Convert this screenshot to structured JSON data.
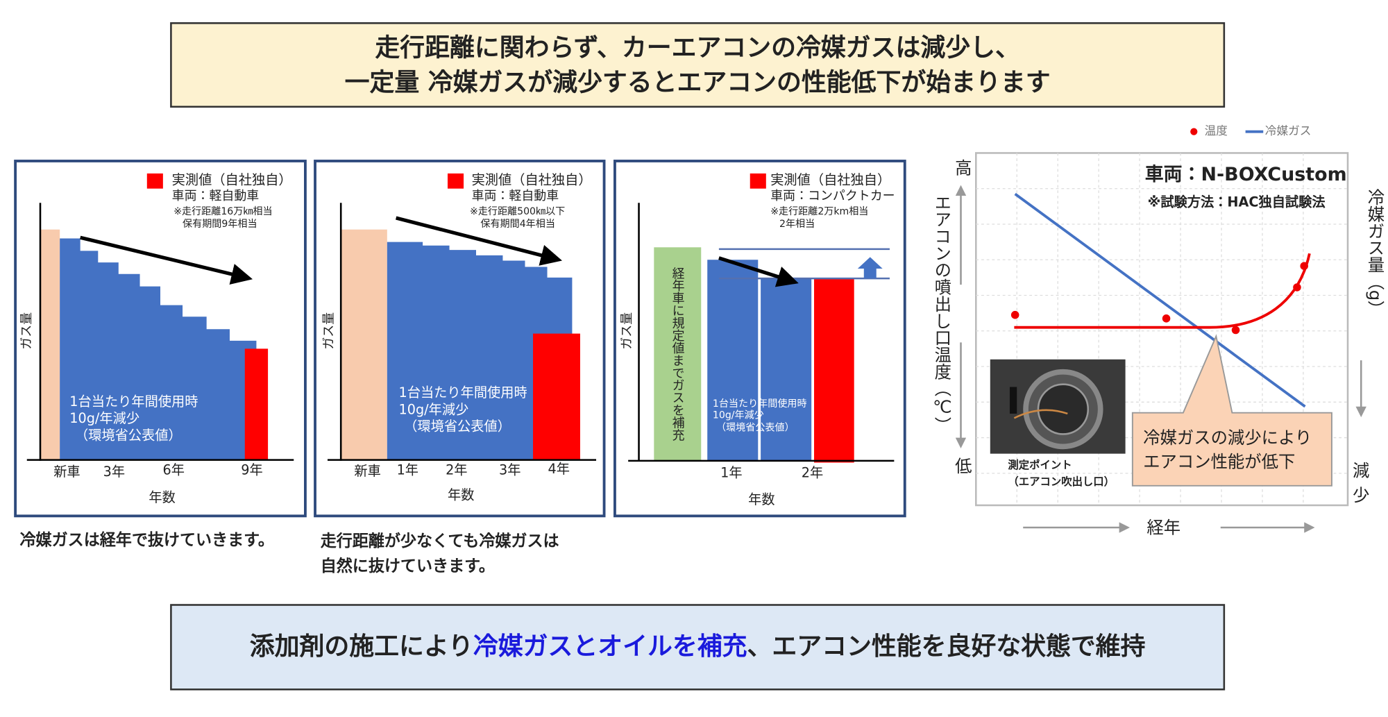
{
  "header": {
    "line1": "走行距離に関わらず、カーエアコンの冷媒ガスは減少し、",
    "line2": "一定量 冷媒ガスが減少するとエアコンの性能低下が始まります"
  },
  "panels": [
    {
      "legend": "実測値（自社独自）",
      "vehicle": "車両：軽自動車",
      "note1": "※走行距離16万㎞相当",
      "note2": "保有期間9年相当",
      "y_label": "ガス量",
      "x_label": "年数",
      "x_ticks": [
        "新車",
        "3年",
        "6年",
        "9年"
      ],
      "annotation": [
        "1台当たり年間使用時",
        "10g/年減少",
        "（環境省公表値）"
      ],
      "caption": [
        "冷媒ガスは経年で抜けていきます。"
      ]
    },
    {
      "legend": "実測値（自社独自）",
      "vehicle": "車両：軽自動車",
      "note1": "※走行距離500㎞以下",
      "note2": "保有期間4年相当",
      "y_label": "ガス量",
      "x_label": "年数",
      "x_ticks": [
        "新車",
        "1年",
        "2年",
        "3年",
        "4年"
      ],
      "annotation": [
        "1台当たり年間使用時",
        "10g/年減少",
        "（環境省公表値）"
      ],
      "caption": [
        "走行距離が少なくても冷媒ガスは",
        "自然に抜けていきます。"
      ]
    },
    {
      "legend": "実測値（自社独自）",
      "vehicle": "車両：コンパクトカー",
      "note1": "※走行距離2万km相当",
      "note2": "2年相当",
      "y_label": "ガス量",
      "x_label": "年数",
      "x_ticks": [
        "1年",
        "2年"
      ],
      "annotation": [
        "1台当たり年間使用時",
        "10g/年減少",
        "（環境省公表値）"
      ],
      "refill": "経年車に規定値までガスを補充"
    }
  ],
  "right_chart": {
    "legend": [
      "温度",
      "冷媒ガス"
    ],
    "vehicle": "車両：N-BOXCustom",
    "method": "※試験方法：HAC独自試験法",
    "left_label": "エアコンの噴出し口温度（℃）",
    "high": "高",
    "low": "低",
    "right_label": "冷媒ガス量（g）",
    "decrease": [
      "減",
      "少"
    ],
    "x_label": "経年",
    "callout": [
      "冷媒ガスの減少により",
      "エアコン性能が低下"
    ],
    "photo_caption": [
      "測定ポイント",
      "（エアコン吹出し口）"
    ]
  },
  "footer": {
    "parts": [
      "添加剤の施工により",
      "冷媒ガスとオイルを補充",
      "、エアコン性能を良好な状態で維持"
    ]
  }
}
